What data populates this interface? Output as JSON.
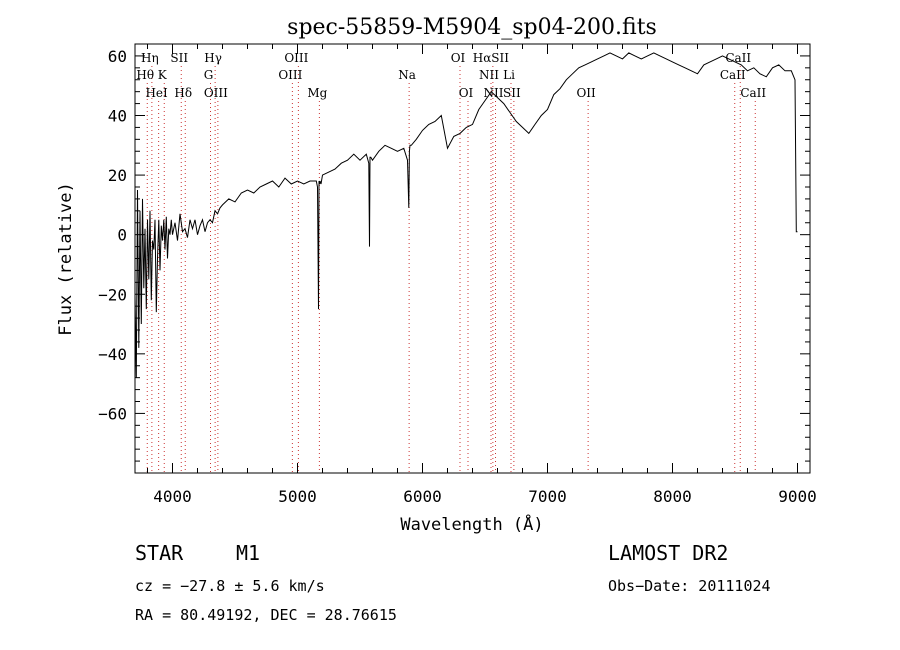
{
  "chart_data": {
    "type": "line",
    "title": "spec-55859-M5904_sp04-200.fits",
    "xlabel": "Wavelength (Å)",
    "ylabel": "Flux (relative)",
    "xlim": [
      3700,
      9100
    ],
    "ylim": [
      -80,
      64
    ],
    "xticks": [
      4000,
      5000,
      6000,
      7000,
      8000,
      9000
    ],
    "yticks": [
      -60,
      -40,
      -20,
      0,
      20,
      40,
      60
    ],
    "grid": false,
    "series": [
      {
        "x": [
          3700,
          3710,
          3720,
          3730,
          3740,
          3750,
          3760,
          3770,
          3780,
          3790,
          3800,
          3810,
          3820,
          3830,
          3840,
          3850,
          3860,
          3870,
          3880,
          3890,
          3900,
          3910,
          3920,
          3930,
          3940,
          3950,
          3960,
          3970,
          3980,
          3990,
          4000,
          4020,
          4040,
          4060,
          4080,
          4100,
          4120,
          4140,
          4160,
          4180,
          4200,
          4220,
          4240,
          4260,
          4280,
          4300,
          4320,
          4340,
          4360,
          4380,
          4400,
          4450,
          4500,
          4550,
          4600,
          4650,
          4700,
          4750,
          4800,
          4850,
          4900,
          4950,
          5000,
          5050,
          5100,
          5150,
          5160,
          5168,
          5172,
          5176,
          5180,
          5188,
          5200,
          5250,
          5300,
          5350,
          5400,
          5450,
          5500,
          5550,
          5570,
          5576,
          5580,
          5586,
          5600,
          5650,
          5700,
          5750,
          5800,
          5850,
          5880,
          5890,
          5895,
          5900,
          5910,
          5950,
          6000,
          6050,
          6100,
          6150,
          6200,
          6250,
          6300,
          6350,
          6400,
          6450,
          6500,
          6550,
          6600,
          6650,
          6700,
          6750,
          6800,
          6850,
          6900,
          6950,
          7000,
          7050,
          7100,
          7150,
          7200,
          7250,
          7300,
          7350,
          7400,
          7450,
          7500,
          7550,
          7600,
          7650,
          7700,
          7750,
          7800,
          7850,
          7900,
          7950,
          8000,
          8050,
          8100,
          8150,
          8200,
          8250,
          8300,
          8350,
          8400,
          8450,
          8500,
          8550,
          8600,
          8650,
          8700,
          8750,
          8800,
          8850,
          8900,
          8950,
          8980,
          8990,
          9000
        ],
        "y": [
          -20,
          -48,
          15,
          -38,
          8,
          -30,
          12,
          -18,
          2,
          -25,
          5,
          -15,
          8,
          -22,
          -2,
          -5,
          5,
          -26,
          -8,
          5,
          -12,
          3,
          -2,
          5,
          -5,
          6,
          -8,
          2,
          0,
          5,
          0,
          4,
          -2,
          7,
          1,
          2,
          -1,
          5,
          2,
          5,
          0,
          3,
          5,
          1,
          4,
          5,
          4,
          8,
          7,
          9,
          10,
          12,
          11,
          14,
          15,
          14,
          16,
          17,
          18,
          16,
          19,
          17,
          18,
          17,
          18,
          18,
          16,
          -25,
          18,
          17,
          18,
          17,
          20,
          21,
          22,
          24,
          25,
          27,
          25,
          27,
          24,
          -4,
          26,
          26,
          25,
          28,
          30,
          29,
          28,
          29,
          25,
          9,
          28,
          30,
          30,
          32,
          35,
          37,
          38,
          40,
          29,
          33,
          34,
          36,
          37,
          42,
          45,
          48,
          46,
          44,
          41,
          38,
          36,
          34,
          37,
          40,
          42,
          47,
          49,
          52,
          54,
          56,
          57,
          58,
          59,
          60,
          61,
          60,
          59,
          61,
          60,
          59,
          60,
          61,
          60,
          59,
          58,
          57,
          56,
          55,
          54,
          57,
          58,
          59,
          60,
          59,
          58,
          57,
          55,
          56,
          54,
          53,
          56,
          57,
          55,
          55,
          52,
          1,
          1
        ]
      }
    ],
    "line_markers": [
      {
        "label": "Hη",
        "x": 3835,
        "row": 0
      },
      {
        "label": "SII",
        "x": 4070,
        "row": 0
      },
      {
        "label": "Hγ",
        "x": 4341,
        "row": 0
      },
      {
        "label": "OIII",
        "x": 5007,
        "row": 0
      },
      {
        "label": "OI",
        "x": 6300,
        "row": 0
      },
      {
        "label": "HαSII",
        "x": 6563,
        "row": 0
      },
      {
        "label": "CaII",
        "x": 8542,
        "row": 0
      },
      {
        "label": "Hθ",
        "x": 3798,
        "row": 1
      },
      {
        "label": "K",
        "x": 3934,
        "row": 1
      },
      {
        "label": "G",
        "x": 4304,
        "row": 1
      },
      {
        "label": "OIII",
        "x": 4959,
        "row": 1
      },
      {
        "label": "Na",
        "x": 5893,
        "row": 1
      },
      {
        "label": "NII",
        "x": 6548,
        "row": 1
      },
      {
        "label": "Li",
        "x": 6708,
        "row": 1
      },
      {
        "label": "CaII",
        "x": 8498,
        "row": 1
      },
      {
        "label": "HeI",
        "x": 3889,
        "row": 2
      },
      {
        "label": "Hδ",
        "x": 4102,
        "row": 2
      },
      {
        "label": "OIII",
        "x": 4363,
        "row": 2
      },
      {
        "label": "Mg",
        "x": 5175,
        "row": 2
      },
      {
        "label": "OI",
        "x": 6364,
        "row": 2
      },
      {
        "label": "NII",
        "x": 6584,
        "row": 2
      },
      {
        "label": "SII",
        "x": 6731,
        "row": 2
      },
      {
        "label": "OII",
        "x": 7325,
        "row": 2
      },
      {
        "label": "CaII",
        "x": 8662,
        "row": 2
      }
    ],
    "marker_color": "#cc3333",
    "line_color": "#000000"
  },
  "info": {
    "class": "STAR",
    "subclass": "M1",
    "survey": "LAMOST DR2",
    "cz": "cz = −27.8 ± 5.6 km/s",
    "obs_date": "Obs−Date: 20111024",
    "coords": "RA =  80.49192, DEC =  28.76615"
  }
}
